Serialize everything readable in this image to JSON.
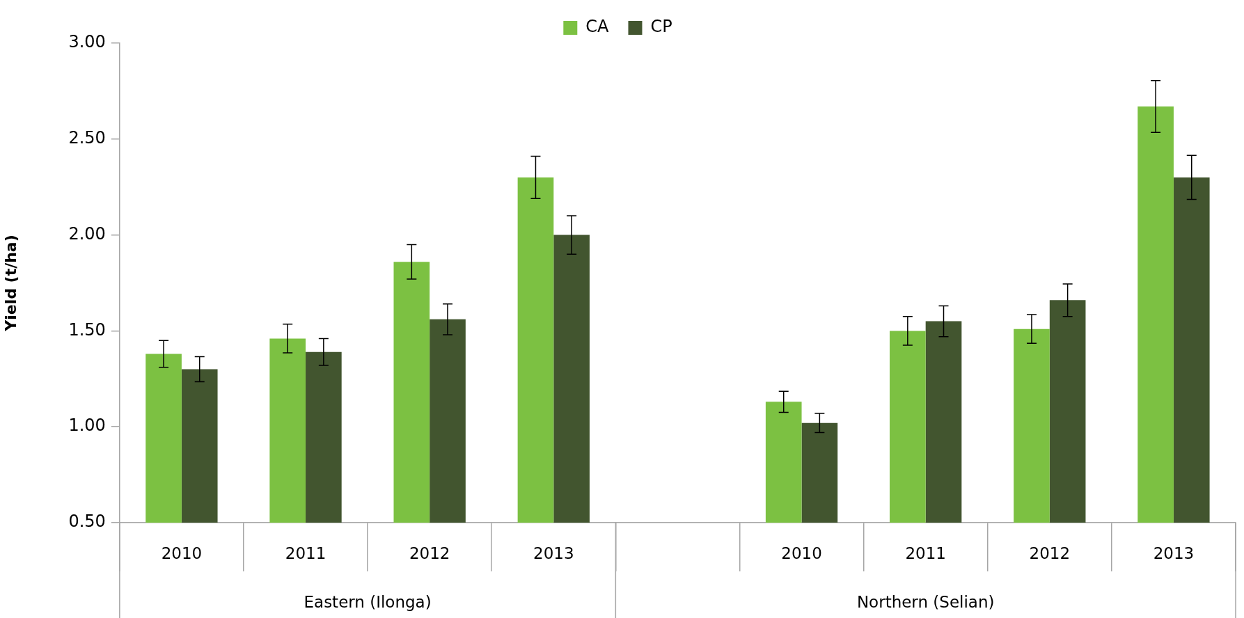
{
  "chart_data": {
    "type": "bar",
    "ylabel": "Yield (t/ha)",
    "categories": [
      "2010",
      "2011",
      "2012",
      "2013",
      null,
      "2010",
      "2011",
      "2012",
      "2013"
    ],
    "series": [
      {
        "name": "CA",
        "color": "#7cc142",
        "values": [
          1.38,
          1.46,
          1.86,
          2.3,
          null,
          1.13,
          1.5,
          1.51,
          2.67
        ],
        "errors": [
          0.07,
          0.075,
          0.09,
          0.11,
          null,
          0.055,
          0.075,
          0.075,
          0.135
        ]
      },
      {
        "name": "CP",
        "color": "#42552f",
        "values": [
          1.3,
          1.39,
          1.56,
          2.0,
          null,
          1.02,
          1.55,
          1.66,
          2.3
        ],
        "errors": [
          0.065,
          0.07,
          0.08,
          0.1,
          null,
          0.05,
          0.08,
          0.085,
          0.115
        ]
      }
    ],
    "ylim": [
      0.5,
      3.0
    ],
    "yticks": [
      {
        "value": 0.5,
        "label": "0.50"
      },
      {
        "value": 1.0,
        "label": "1.00"
      },
      {
        "value": 1.5,
        "label": "1.50"
      },
      {
        "value": 2.0,
        "label": "2.00"
      },
      {
        "value": 2.5,
        "label": "2.50"
      },
      {
        "value": 3.0,
        "label": "3.00"
      }
    ],
    "annotations": [
      "Eastern (Ilonga)",
      "Northern (Selian)"
    ],
    "legend": "top",
    "grid": false
  }
}
